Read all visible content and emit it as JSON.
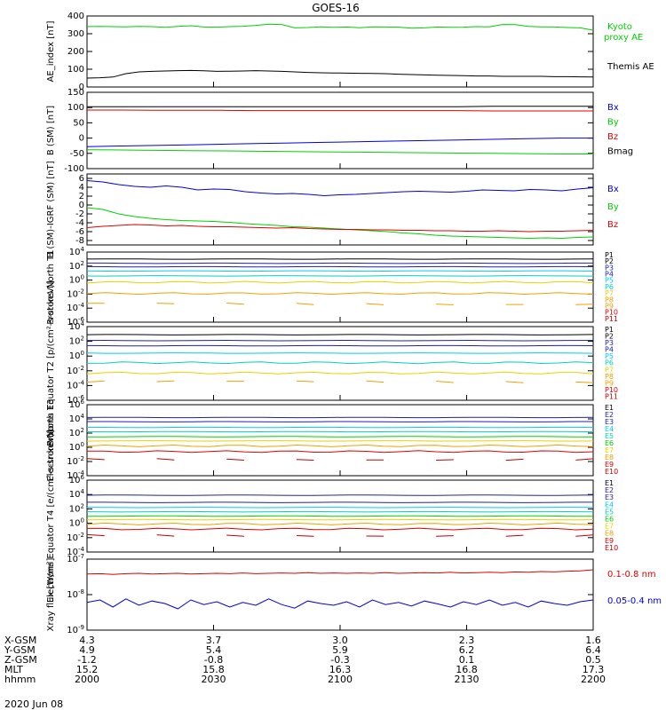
{
  "title": "GOES-16",
  "date_label": "2020 Jun 08",
  "colors": {
    "black": "#000000",
    "green": "#00d000",
    "blue": "#0000e0",
    "red": "#e00000",
    "navy": "#2020b0",
    "cyan": "#00c8ff",
    "teal": "#00d0c0",
    "yellow": "#e6d200",
    "orange": "#f0a000",
    "dark_red": "#c00000"
  },
  "chart_data": [
    {
      "type": "line",
      "ylabel": "AE_index [nT]",
      "ylim": [
        0,
        400
      ],
      "yticks": [
        "0",
        "100",
        "200",
        "300",
        "400"
      ],
      "series": [
        {
          "name": "Kyoto proxy AE",
          "color": "#00d000",
          "values": [
            340,
            341,
            340,
            339,
            341,
            340,
            336,
            341,
            345,
            338,
            337,
            340,
            342,
            347,
            354,
            352,
            333,
            335,
            339,
            336,
            338,
            334,
            339,
            338,
            337,
            331,
            333,
            338,
            336,
            337,
            340,
            339,
            352,
            351,
            341,
            339,
            338,
            335,
            333,
            320
          ]
        },
        {
          "name": "Themis AE",
          "color": "#000000",
          "values": [
            50,
            52,
            56,
            75,
            85,
            88,
            90,
            92,
            93,
            91,
            88,
            89,
            90,
            92,
            90,
            88,
            85,
            82,
            80,
            79,
            78,
            77,
            76,
            75,
            72,
            70,
            68,
            66,
            65,
            64,
            62,
            62,
            60,
            60,
            60,
            60,
            58,
            58,
            57,
            56
          ]
        }
      ]
    },
    {
      "type": "line",
      "ylabel": "B (SM) [nT]",
      "ylim": [
        -100,
        150
      ],
      "yticks": [
        "-100",
        "-50",
        "0",
        "50",
        "100",
        "150"
      ],
      "series": [
        {
          "name": "Bx",
          "color": "#0000e0",
          "values": [
            -28,
            -26,
            -24,
            -22,
            -20,
            -18,
            -16,
            -14,
            -12,
            -10,
            -8,
            -6,
            -4,
            -2,
            0,
            0
          ]
        },
        {
          "name": "By",
          "color": "#00d000",
          "values": [
            -38,
            -39,
            -40,
            -41,
            -42,
            -43,
            -44,
            -45,
            -46,
            -47,
            -48,
            -49,
            -50,
            -51,
            -52,
            -52
          ]
        },
        {
          "name": "Bz",
          "color": "#e00000",
          "values": [
            92,
            92,
            91,
            91,
            91,
            90,
            90,
            90,
            90,
            90,
            90,
            90,
            89,
            89,
            89,
            89
          ]
        },
        {
          "name": "Bmag",
          "color": "#000000",
          "values": [
            103,
            103,
            103,
            103,
            103,
            103,
            103,
            103,
            103,
            103,
            103,
            103,
            104,
            104,
            104,
            104
          ]
        }
      ]
    },
    {
      "type": "line",
      "ylabel": "B (SM)-IGRF (SM) [nT]",
      "ylim": [
        -9,
        7
      ],
      "yticks": [
        "-8",
        "-6",
        "-4",
        "-2",
        "0",
        "2",
        "4",
        "6"
      ],
      "series": [
        {
          "name": "Bx",
          "color": "#0000e0",
          "values": [
            5.5,
            5.2,
            4.6,
            4.2,
            4.0,
            4.3,
            4.0,
            3.4,
            3.6,
            3.5,
            3.0,
            2.7,
            2.5,
            2.6,
            2.4,
            2.1,
            2.3,
            2.4,
            2.6,
            2.8,
            3.0,
            3.1,
            3.0,
            2.9,
            3.1,
            3.4,
            3.3,
            3.2,
            3.5,
            3.4,
            3.2,
            3.6,
            3.9
          ]
        },
        {
          "name": "By",
          "color": "#00d000",
          "values": [
            -0.6,
            -1.0,
            -2.0,
            -2.6,
            -3.0,
            -3.3,
            -3.5,
            -3.6,
            -3.7,
            -3.9,
            -4.2,
            -4.4,
            -4.6,
            -4.9,
            -5.0,
            -5.2,
            -5.4,
            -5.6,
            -5.8,
            -6.0,
            -6.3,
            -6.5,
            -6.8,
            -7.0,
            -7.1,
            -7.2,
            -7.3,
            -7.4,
            -7.5,
            -7.4,
            -7.5,
            -7.3,
            -7.2
          ]
        },
        {
          "name": "Bz",
          "color": "#e00000",
          "values": [
            -5.1,
            -4.8,
            -4.6,
            -4.4,
            -4.5,
            -4.7,
            -4.6,
            -4.8,
            -4.9,
            -4.9,
            -5.0,
            -5.1,
            -5.2,
            -5.1,
            -5.3,
            -5.4,
            -5.5,
            -5.5,
            -5.6,
            -5.6,
            -5.7,
            -5.7,
            -5.8,
            -5.8,
            -5.9,
            -5.9,
            -5.8,
            -5.9,
            -6.0,
            -5.9,
            -5.9,
            -5.8,
            -5.7
          ]
        }
      ]
    },
    {
      "type": "line",
      "ylabel": "Protons North T1",
      "yscale": "log",
      "ylim": [
        -6,
        4
      ],
      "yticks": [
        "10^-6",
        "10^-4",
        "10^-2",
        "10^0",
        "10^2",
        "10^4"
      ],
      "legend": [
        "P1",
        "P2",
        "P3",
        "P4",
        "P5",
        "P6",
        "P7",
        "P8",
        "P9",
        "P10",
        "P11"
      ],
      "legend_colors": [
        "#000000",
        "#000000",
        "#2020b0",
        "#2020b0",
        "#00c8ff",
        "#00d0c0",
        "#e6d200",
        "#f0a000",
        "#f0a000",
        "#e00000",
        "#c00000"
      ],
      "levels": [
        3.0,
        2.4,
        1.9,
        1.3,
        0.6,
        -0.3,
        -1.9,
        -3.4
      ]
    },
    {
      "type": "line",
      "ylabel": "Protons Equator T2 [p/(cm²-s-sr-keV)]",
      "yscale": "log",
      "ylim": [
        -6,
        4
      ],
      "yticks": [
        "10^-6",
        "10^-4",
        "10^-2",
        "10^0",
        "10^2",
        "10^4"
      ],
      "legend": [
        "P1",
        "P2",
        "P3",
        "P4",
        "P5",
        "P6",
        "P7",
        "P8",
        "P9",
        "P10",
        "P11"
      ],
      "legend_colors": [
        "#000000",
        "#000000",
        "#2020b0",
        "#2020b0",
        "#00c8ff",
        "#00d0c0",
        "#e6d200",
        "#f0a000",
        "#f0a000",
        "#e00000",
        "#c00000"
      ],
      "levels": [
        2.9,
        2.1,
        1.4,
        0.4,
        -0.9,
        -2.3,
        -3.5
      ]
    },
    {
      "type": "line",
      "ylabel": "Electrons North T3",
      "yscale": "log",
      "ylim": [
        -4,
        6
      ],
      "yticks": [
        "10^-4",
        "10^-2",
        "10^0",
        "10^2",
        "10^4",
        "10^6"
      ],
      "legend": [
        "E1",
        "E2",
        "E3",
        "E4",
        "E5",
        "E6",
        "E7",
        "E8",
        "E9",
        "E10"
      ],
      "legend_colors": [
        "#000000",
        "#2020b0",
        "#2020b0",
        "#00c8ff",
        "#00d0c0",
        "#00d000",
        "#e6d200",
        "#f0a000",
        "#e00000",
        "#c00000"
      ],
      "levels": [
        4.2,
        3.6,
        2.8,
        2.2,
        1.5,
        0.9,
        0.2,
        -0.6,
        -1.7
      ]
    },
    {
      "type": "line",
      "ylabel": "Electrons Equator T4 [e/(cm²-s-sr-keV)]",
      "yscale": "log",
      "ylim": [
        -4,
        6
      ],
      "yticks": [
        "10^-4",
        "10^-2",
        "10^0",
        "10^2",
        "10^4",
        "10^6"
      ],
      "legend": [
        "E1",
        "E2",
        "E3",
        "E4",
        "E5",
        "E6",
        "E7",
        "E8",
        "E9",
        "E10"
      ],
      "legend_colors": [
        "#000000",
        "#2020b0",
        "#2020b0",
        "#00c8ff",
        "#00d0c0",
        "#00d000",
        "#e6d200",
        "#f0a000",
        "#e00000",
        "#c00000"
      ],
      "levels": [
        3.9,
        2.9,
        2.2,
        1.6,
        1.0,
        0.5,
        -0.1,
        -0.8,
        -1.7
      ]
    },
    {
      "type": "line",
      "ylabel": "Xray flux [W/m²]",
      "yscale": "log",
      "ylim": [
        -9,
        -7
      ],
      "yticks": [
        "10^-9",
        "10^-8",
        "10^-7"
      ],
      "series": [
        {
          "name": "0.1-0.8 nm",
          "color": "#e00000",
          "values": [
            -7.42,
            -7.41,
            -7.43,
            -7.41,
            -7.4,
            -7.42,
            -7.41,
            -7.4,
            -7.42,
            -7.41,
            -7.4,
            -7.41,
            -7.39,
            -7.41,
            -7.4,
            -7.39,
            -7.4,
            -7.38,
            -7.4,
            -7.39,
            -7.4,
            -7.39,
            -7.4,
            -7.38,
            -7.4,
            -7.39,
            -7.38,
            -7.39,
            -7.37,
            -7.39,
            -7.38,
            -7.37,
            -7.38,
            -7.36,
            -7.37,
            -7.35,
            -7.36,
            -7.34,
            -7.33,
            -7.3
          ]
        },
        {
          "name": "0.05-0.4 nm",
          "color": "#0000e0",
          "values": [
            -8.22,
            -8.15,
            -8.35,
            -8.12,
            -8.3,
            -8.18,
            -8.25,
            -8.4,
            -8.15,
            -8.28,
            -8.2,
            -8.35,
            -8.22,
            -8.3,
            -8.12,
            -8.28,
            -8.38,
            -8.18,
            -8.25,
            -8.3,
            -8.2,
            -8.35,
            -8.15,
            -8.28,
            -8.22,
            -8.32,
            -8.18,
            -8.26,
            -8.35,
            -8.2,
            -8.28,
            -8.15,
            -8.3,
            -8.22,
            -8.35,
            -8.18,
            -8.25,
            -8.3,
            -8.2,
            -8.15
          ]
        }
      ]
    }
  ],
  "ephemeris": {
    "row_labels": [
      "X-GSM",
      "Y-GSM",
      "Z-GSM",
      "MLT",
      "hhmm"
    ],
    "columns": [
      [
        "4.3",
        "4.9",
        "-1.2",
        "15.2",
        "2000"
      ],
      [
        "3.7",
        "5.4",
        "-0.8",
        "15.8",
        "2030"
      ],
      [
        "3.0",
        "5.9",
        "-0.3",
        "16.3",
        "2100"
      ],
      [
        "2.3",
        "6.2",
        "0.1",
        "16.8",
        "2130"
      ],
      [
        "1.6",
        "6.4",
        "0.5",
        "17.3",
        "2200"
      ]
    ]
  }
}
